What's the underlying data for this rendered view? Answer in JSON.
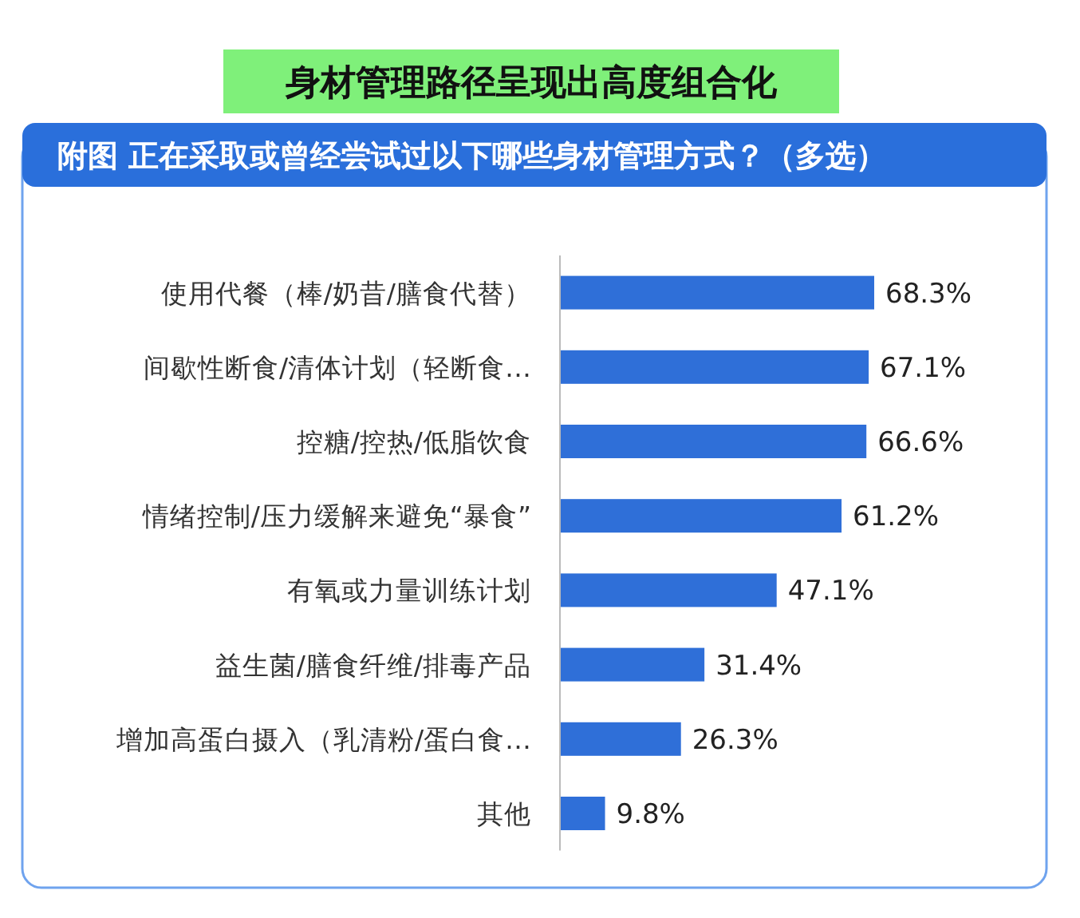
{
  "chart_data": {
    "type": "bar",
    "orientation": "horizontal",
    "title": "身材管理路径呈现出高度组合化",
    "subtitle": "附图 正在采取或曾经尝试过以下哪些身材管理方式？（多选）",
    "categories": [
      "使用代餐（棒/奶昔/膳食代替）",
      "间歇性断食/清体计划（轻断食…",
      "控糖/控热/低脂饮食",
      "情绪控制/压力缓解来避免“暴食”",
      "有氧或力量训练计划",
      "益生菌/膳食纤维/排毒产品",
      "增加高蛋白摄入（乳清粉/蛋白食…",
      "其他"
    ],
    "values": [
      68.3,
      67.1,
      66.6,
      61.2,
      47.1,
      31.4,
      26.3,
      9.8
    ],
    "value_labels": [
      "68.3%",
      "67.1%",
      "66.6%",
      "61.2%",
      "47.1%",
      "31.4%",
      "26.3%",
      "9.8%"
    ],
    "color": "#2f6fd8"
  }
}
